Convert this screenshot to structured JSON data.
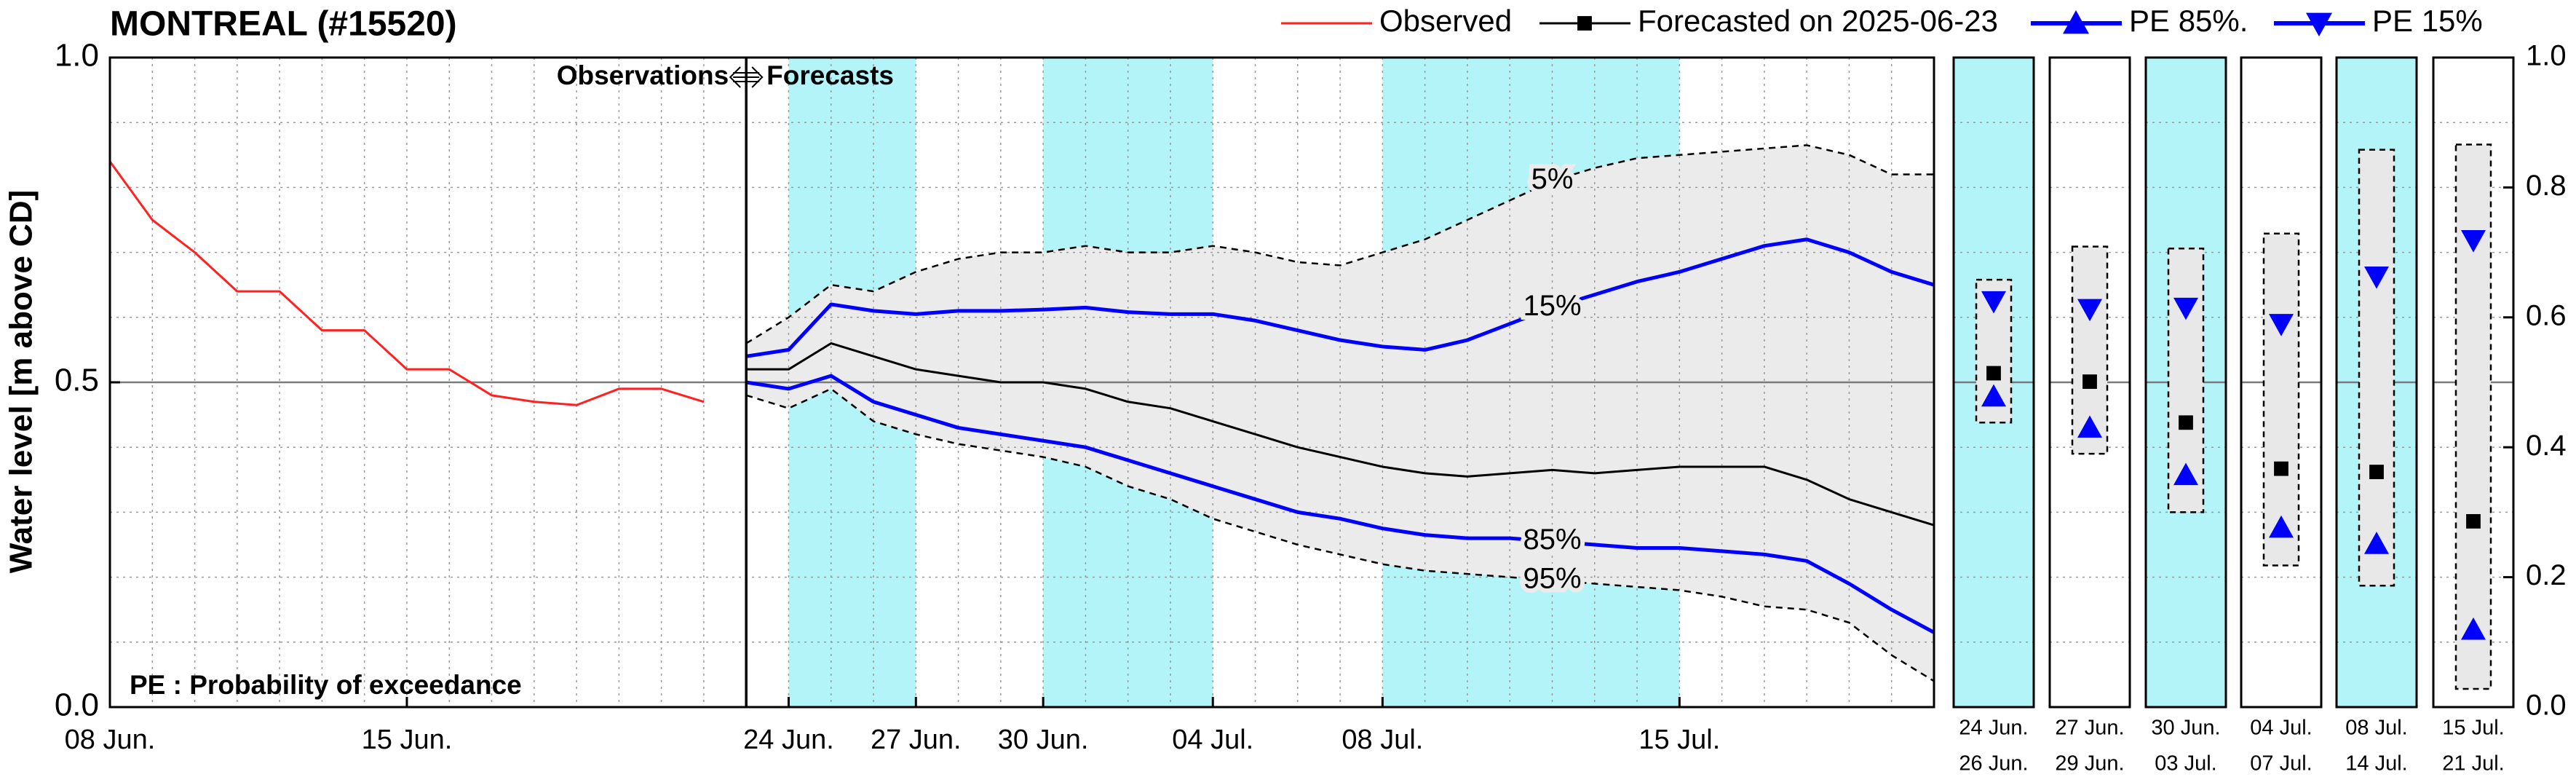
{
  "chart_data": [
    {
      "type": "line",
      "title": "MONTREAL (#15520)",
      "ylabel": "Water level [m above CD]",
      "xlim": [
        0,
        43
      ],
      "xticks": [
        {
          "value": 0,
          "label": "08 Jun."
        },
        {
          "value": 7,
          "label": "15 Jun."
        },
        {
          "value": 16,
          "label": "24 Jun."
        },
        {
          "value": 19,
          "label": "27 Jun."
        },
        {
          "value": 22,
          "label": "30 Jun."
        },
        {
          "value": 26,
          "label": "04 Jul."
        },
        {
          "value": 30,
          "label": "08 Jul."
        },
        {
          "value": 37,
          "label": "15 Jul."
        }
      ],
      "minor_xticks": [
        1,
        2,
        3,
        4,
        5,
        6,
        7,
        8,
        9,
        10,
        11,
        12,
        13,
        14,
        15,
        16,
        17,
        18,
        19,
        20,
        21,
        22,
        23,
        24,
        25,
        26,
        27,
        28,
        29,
        30,
        31,
        32,
        33,
        34,
        35,
        36,
        37,
        38,
        39,
        40,
        41,
        42
      ],
      "ylim": [
        0,
        1
      ],
      "yticks": [
        {
          "value": 0,
          "label": "0.0"
        },
        {
          "value": 0.5,
          "label": "0.5"
        },
        {
          "value": 1,
          "label": "1.0"
        }
      ],
      "minor_yticks": [
        0.1,
        0.2,
        0.3,
        0.4,
        0.6,
        0.7,
        0.8,
        0.9
      ],
      "hline": 0.5,
      "grid": true,
      "divider_x": 15,
      "shaded_periods": [
        [
          16,
          19
        ],
        [
          22,
          26
        ],
        [
          30,
          37
        ]
      ],
      "shade_color": "#b3f4f9",
      "band_color": "#ebebeb",
      "annotations": {
        "left": "Observations",
        "right": "Forecasts",
        "note": "PE : Probability of exceedance"
      },
      "series": [
        {
          "name": "Observed",
          "color": "#ff2020",
          "style": "thin",
          "x": [
            0,
            1,
            2,
            3,
            4,
            5,
            6,
            7,
            8,
            9,
            10,
            11,
            12,
            13,
            14
          ],
          "values": [
            0.84,
            0.75,
            0.7,
            0.64,
            0.64,
            0.58,
            0.58,
            0.52,
            0.52,
            0.48,
            0.47,
            0.465,
            0.49,
            0.49,
            0.47
          ]
        },
        {
          "name": "Forecasted on 2025-06-23",
          "color": "#000000",
          "style": "thin",
          "x": [
            15,
            16,
            17,
            18,
            19,
            20,
            21,
            22,
            23,
            24,
            25,
            26,
            27,
            28,
            29,
            30,
            31,
            32,
            33,
            34,
            35,
            36,
            37,
            38,
            39,
            40,
            41,
            42,
            43
          ],
          "values": [
            0.52,
            0.52,
            0.56,
            0.54,
            0.52,
            0.51,
            0.5,
            0.5,
            0.49,
            0.47,
            0.46,
            0.44,
            0.42,
            0.4,
            0.385,
            0.37,
            0.36,
            0.355,
            0.36,
            0.365,
            0.36,
            0.365,
            0.37,
            0.37,
            0.37,
            0.35,
            0.32,
            0.3,
            0.28
          ]
        },
        {
          "name": "15%",
          "color": "#0000ff",
          "style": "thick",
          "x": [
            15,
            16,
            17,
            18,
            19,
            20,
            21,
            22,
            23,
            24,
            25,
            26,
            27,
            28,
            29,
            30,
            31,
            32,
            33,
            34,
            35,
            36,
            37,
            38,
            39,
            40,
            41,
            42,
            43
          ],
          "values": [
            0.54,
            0.55,
            0.62,
            0.61,
            0.605,
            0.61,
            0.61,
            0.612,
            0.615,
            0.608,
            0.605,
            0.605,
            0.595,
            0.58,
            0.565,
            0.555,
            0.55,
            0.565,
            0.59,
            0.615,
            0.635,
            0.655,
            0.67,
            0.69,
            0.71,
            0.72,
            0.7,
            0.67,
            0.65
          ]
        },
        {
          "name": "85%",
          "color": "#0000ff",
          "style": "thick",
          "x": [
            15,
            16,
            17,
            18,
            19,
            20,
            21,
            22,
            23,
            24,
            25,
            26,
            27,
            28,
            29,
            30,
            31,
            32,
            33,
            34,
            35,
            36,
            37,
            38,
            39,
            40,
            41,
            42,
            43
          ],
          "values": [
            0.5,
            0.49,
            0.51,
            0.47,
            0.45,
            0.43,
            0.42,
            0.41,
            0.4,
            0.38,
            0.36,
            0.34,
            0.32,
            0.3,
            0.29,
            0.275,
            0.265,
            0.26,
            0.26,
            0.255,
            0.25,
            0.245,
            0.245,
            0.24,
            0.235,
            0.225,
            0.19,
            0.15,
            0.115
          ]
        },
        {
          "name": "5%",
          "color": "#000000",
          "style": "dashed",
          "x": [
            15,
            16,
            17,
            18,
            19,
            20,
            21,
            22,
            23,
            24,
            25,
            26,
            27,
            28,
            29,
            30,
            31,
            32,
            33,
            34,
            35,
            36,
            37,
            38,
            39,
            40,
            41,
            42,
            43
          ],
          "values": [
            0.56,
            0.6,
            0.65,
            0.64,
            0.67,
            0.69,
            0.7,
            0.7,
            0.71,
            0.7,
            0.7,
            0.71,
            0.7,
            0.685,
            0.68,
            0.7,
            0.72,
            0.75,
            0.78,
            0.81,
            0.83,
            0.845,
            0.85,
            0.855,
            0.86,
            0.865,
            0.85,
            0.82,
            0.82
          ]
        },
        {
          "name": "95%",
          "color": "#000000",
          "style": "dashed",
          "x": [
            15,
            16,
            17,
            18,
            19,
            20,
            21,
            22,
            23,
            24,
            25,
            26,
            27,
            28,
            29,
            30,
            31,
            32,
            33,
            34,
            35,
            36,
            37,
            38,
            39,
            40,
            41,
            42,
            43
          ],
          "values": [
            0.48,
            0.46,
            0.49,
            0.44,
            0.42,
            0.405,
            0.395,
            0.385,
            0.37,
            0.34,
            0.32,
            0.29,
            0.27,
            0.25,
            0.235,
            0.22,
            0.21,
            0.205,
            0.2,
            0.195,
            0.19,
            0.185,
            0.18,
            0.17,
            0.155,
            0.15,
            0.13,
            0.08,
            0.04
          ]
        }
      ]
    },
    {
      "type": "range",
      "categories": [
        [
          "24 Jun.",
          "26 Jun."
        ],
        [
          "27 Jun.",
          "29 Jun."
        ],
        [
          "30 Jun.",
          "03 Jul."
        ],
        [
          "04 Jul.",
          "07 Jul."
        ],
        [
          "08 Jul.",
          "14 Jul."
        ],
        [
          "15 Jul.",
          "21 Jul."
        ]
      ],
      "ylim": [
        0,
        1
      ],
      "yticks": [
        {
          "value": 0,
          "label": "0.0"
        },
        {
          "value": 0.2,
          "label": "0.2"
        },
        {
          "value": 0.4,
          "label": "0.4"
        },
        {
          "value": 0.6,
          "label": "0.6"
        },
        {
          "value": 0.8,
          "label": "0.8"
        },
        {
          "value": 1,
          "label": "1.0"
        }
      ],
      "minor_yticks": [
        0.1,
        0.2,
        0.3,
        0.4,
        0.6,
        0.7,
        0.8,
        0.9
      ],
      "hline": 0.5,
      "shaded": [
        true,
        false,
        true,
        false,
        true,
        false
      ],
      "shade_color": "#b3f4f9",
      "box_color": "#e8e8e8",
      "low": [
        0.438,
        0.39,
        0.3,
        0.218,
        0.187,
        0.028
      ],
      "high": [
        0.658,
        0.709,
        0.706,
        0.729,
        0.858,
        0.866
      ],
      "series": [
        {
          "name": "PE 85%.",
          "marker": "triangle-up",
          "color": "#0000ff",
          "values": [
            0.478,
            0.43,
            0.357,
            0.276,
            0.251,
            0.119
          ]
        },
        {
          "name": "PE 15%",
          "marker": "triangle-down",
          "color": "#0000ff",
          "values": [
            0.625,
            0.613,
            0.615,
            0.59,
            0.663,
            0.719
          ]
        },
        {
          "marker": "square",
          "color": "#000000",
          "values": [
            0.514,
            0.501,
            0.438,
            0.367,
            0.362,
            0.286
          ]
        }
      ]
    }
  ]
}
